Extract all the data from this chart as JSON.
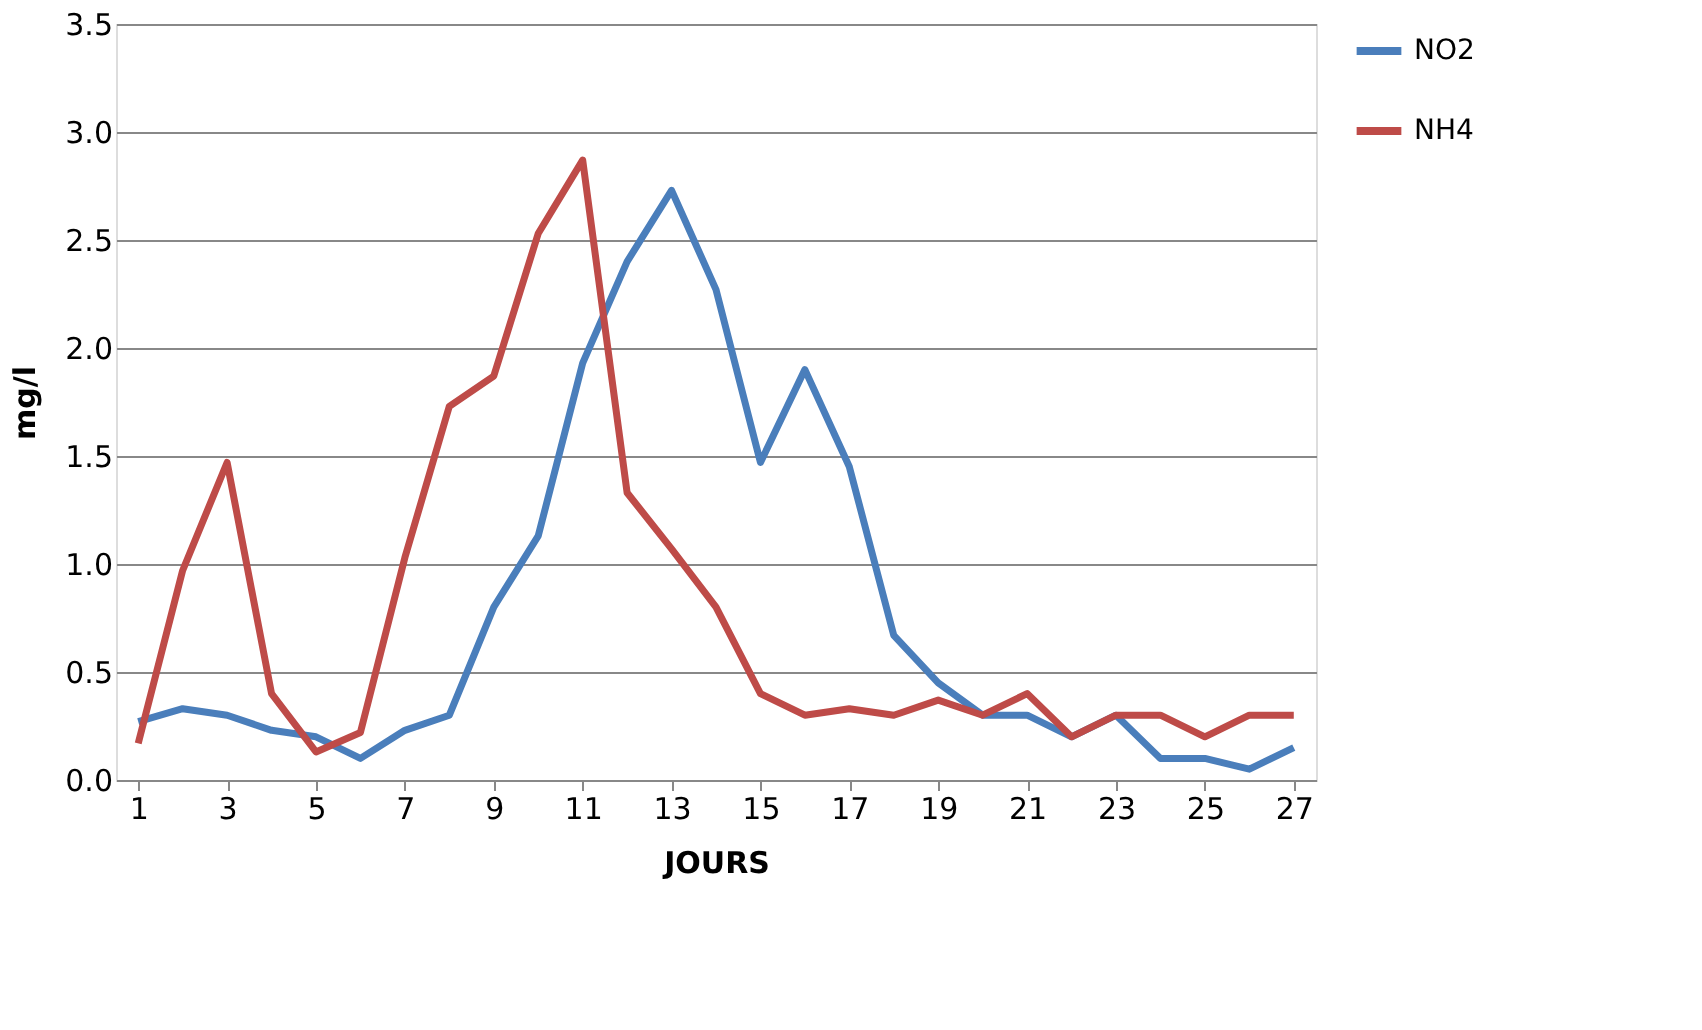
{
  "chart_data": {
    "type": "line",
    "xlabel": "JOURS",
    "ylabel": "mg/l",
    "x": [
      1,
      2,
      3,
      4,
      5,
      6,
      7,
      8,
      9,
      10,
      11,
      12,
      13,
      14,
      15,
      16,
      17,
      18,
      19,
      20,
      21,
      22,
      23,
      24,
      25,
      26,
      27
    ],
    "xlim": [
      0.5,
      27.5
    ],
    "xticks": [
      1,
      3,
      5,
      7,
      9,
      11,
      13,
      15,
      17,
      19,
      21,
      23,
      25,
      27
    ],
    "ylim": [
      0,
      3.5
    ],
    "yticks": [
      {
        "value": 0,
        "label": "0.0"
      },
      {
        "value": 0.5,
        "label": "0.5"
      },
      {
        "value": 1,
        "label": "1.0"
      },
      {
        "value": 1.5,
        "label": "1.5"
      },
      {
        "value": 2,
        "label": "2.0"
      },
      {
        "value": 2.5,
        "label": "2.5"
      },
      {
        "value": 3,
        "label": "3.0"
      },
      {
        "value": 3.5,
        "label": "3.5"
      }
    ],
    "grid": "y",
    "legend": "right",
    "marker": "none",
    "line_style": "solid",
    "series": [
      {
        "name": "NO2",
        "color": "#4a7ebb",
        "values": [
          0.27,
          0.33,
          0.3,
          0.23,
          0.2,
          0.1,
          0.23,
          0.3,
          0.8,
          1.13,
          1.93,
          2.4,
          2.73,
          2.27,
          1.47,
          1.9,
          1.45,
          0.67,
          0.45,
          0.3,
          0.3,
          0.2,
          0.3,
          0.1,
          0.1,
          0.05,
          0.15
        ]
      },
      {
        "name": "NH4",
        "color": "#be4b48",
        "values": [
          0.17,
          0.97,
          1.47,
          0.4,
          0.13,
          0.22,
          1.03,
          1.73,
          1.87,
          2.53,
          2.87,
          1.33,
          1.07,
          0.8,
          0.4,
          0.3,
          0.33,
          0.3,
          0.37,
          0.3,
          0.4,
          0.2,
          0.3,
          0.3,
          0.2,
          0.3,
          0.3
        ]
      }
    ]
  }
}
